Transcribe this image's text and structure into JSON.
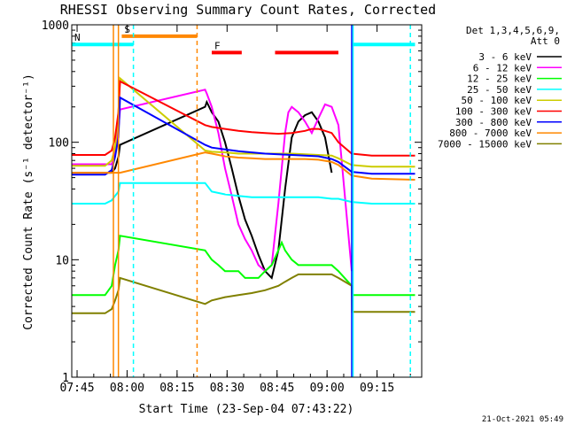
{
  "chart_data": {
    "type": "line",
    "title": "RHESSI Observing Summary Count Rates, Corrected",
    "xlabel": "Start Time (23-Sep-04 07:43:22)",
    "ylabel": "Corrected Count Rate (s⁻¹ detector⁻¹)",
    "x_unit": "minutes since 07:43:22",
    "xlim": [
      0,
      105
    ],
    "ylim": [
      1,
      1000
    ],
    "y_scale": "log",
    "x_ticks": [
      {
        "value": 1.6,
        "label": "07:45"
      },
      {
        "value": 16.6,
        "label": "08:00"
      },
      {
        "value": 31.6,
        "label": "08:15"
      },
      {
        "value": 46.6,
        "label": "08:30"
      },
      {
        "value": 61.6,
        "label": "08:45"
      },
      {
        "value": 76.6,
        "label": "09:00"
      },
      {
        "value": 91.6,
        "label": "09:15"
      }
    ],
    "y_ticks": [
      {
        "value": 1,
        "label": "1"
      },
      {
        "value": 10,
        "label": "10"
      },
      {
        "value": 100,
        "label": "100"
      },
      {
        "value": 1000,
        "label": "1000"
      }
    ],
    "legend_header": [
      "Det 1,3,4,5,6,9,",
      "Att 0"
    ],
    "series": [
      {
        "name": "3 - 6 keV",
        "color": "#000000",
        "x": [
          0,
          12,
          13,
          14,
          14.5,
          40,
          40.5,
          42,
          44,
          46,
          48,
          50,
          52,
          54,
          56,
          58,
          60,
          62,
          64,
          66,
          68,
          70,
          72,
          74,
          76,
          78,
          80
        ],
        "y": [
          55,
          55,
          60,
          75,
          95,
          200,
          220,
          180,
          150,
          100,
          60,
          35,
          22,
          16,
          11,
          8,
          7,
          12,
          40,
          110,
          150,
          170,
          180,
          150,
          110,
          55,
          null
        ]
      },
      {
        "name": "6 - 12 keV",
        "color": "#ff00ff",
        "x": [
          0,
          12,
          13,
          14,
          14.5,
          40,
          40.5,
          42,
          44,
          46,
          48,
          50,
          52,
          54,
          56,
          58,
          60,
          62,
          64,
          65,
          66,
          68,
          70,
          72,
          74,
          76,
          78,
          80,
          84
        ],
        "y": [
          65,
          65,
          80,
          130,
          190,
          280,
          260,
          200,
          120,
          60,
          35,
          20,
          15,
          12,
          9,
          8,
          9,
          30,
          120,
          180,
          200,
          180,
          150,
          120,
          160,
          210,
          200,
          140,
          8
        ]
      },
      {
        "name": "12 - 25 keV",
        "color": "#00ff00",
        "x": [
          0,
          10,
          12,
          13,
          14,
          14.5,
          40,
          42,
          44,
          46,
          48,
          50,
          52,
          54,
          56,
          58,
          60,
          62,
          63,
          64,
          66,
          68,
          70,
          72,
          74,
          76,
          78,
          80,
          84,
          84.1,
          103
        ],
        "y": [
          5,
          5,
          6,
          9,
          12,
          16,
          12,
          10,
          9,
          8,
          8,
          8,
          7,
          7,
          7,
          8,
          9,
          12,
          14,
          12,
          10,
          9,
          9,
          9,
          9,
          9,
          9,
          8,
          6,
          5,
          5
        ]
      },
      {
        "name": "25 - 50 keV",
        "color": "#00ffff",
        "x": [
          0,
          10,
          12,
          13,
          14,
          14.5,
          40,
          42,
          46,
          50,
          54,
          58,
          62,
          66,
          70,
          74,
          78,
          80,
          84,
          90,
          103
        ],
        "y": [
          30,
          30,
          32,
          35,
          38,
          45,
          45,
          38,
          36,
          35,
          34,
          34,
          34,
          34,
          34,
          34,
          33,
          33,
          31,
          30,
          30
        ]
      },
      {
        "name": "50 - 100 keV",
        "color": "#cccc00",
        "x": [
          0,
          10,
          12,
          13,
          14,
          14.5,
          40,
          42,
          46,
          50,
          54,
          58,
          62,
          66,
          70,
          74,
          78,
          80,
          84,
          90,
          103
        ],
        "y": [
          63,
          63,
          70,
          90,
          180,
          350,
          85,
          83,
          82,
          80,
          80,
          80,
          80,
          80,
          79,
          78,
          77,
          73,
          64,
          62,
          62
        ]
      },
      {
        "name": "100 - 300 keV",
        "color": "#ff0000",
        "x": [
          0,
          10,
          12,
          13,
          14,
          14.5,
          40,
          42,
          46,
          50,
          54,
          58,
          62,
          66,
          70,
          72,
          74,
          76,
          78,
          80,
          84,
          90,
          103
        ],
        "y": [
          78,
          78,
          85,
          110,
          180,
          330,
          140,
          135,
          130,
          125,
          122,
          120,
          118,
          120,
          125,
          130,
          130,
          125,
          120,
          100,
          80,
          77,
          77
        ]
      },
      {
        "name": "300 - 800 keV",
        "color": "#0000ff",
        "x": [
          0,
          10,
          12,
          13,
          14,
          14.5,
          40,
          42,
          46,
          50,
          54,
          58,
          62,
          66,
          70,
          74,
          78,
          80,
          84,
          90,
          103
        ],
        "y": [
          53,
          53,
          58,
          75,
          110,
          240,
          95,
          90,
          87,
          84,
          82,
          80,
          79,
          78,
          77,
          76,
          72,
          68,
          56,
          54,
          54
        ]
      },
      {
        "name": "800 - 7000 keV",
        "color": "#ff8800",
        "x": [
          0,
          10,
          14,
          14.5,
          40,
          42,
          46,
          50,
          54,
          58,
          62,
          66,
          70,
          74,
          78,
          80,
          84,
          90,
          103
        ],
        "y": [
          55,
          55,
          55,
          55,
          82,
          80,
          76,
          74,
          73,
          72,
          72,
          72,
          72,
          71,
          68,
          64,
          52,
          49,
          48
        ]
      },
      {
        "name": "7000 - 15000 keV",
        "color": "#808000",
        "x": [
          0,
          10,
          12,
          13,
          14,
          14.5,
          40,
          42,
          46,
          50,
          54,
          58,
          62,
          64,
          66,
          68,
          70,
          72,
          74,
          76,
          78,
          80,
          84,
          84.1,
          103
        ],
        "y": [
          3.5,
          3.5,
          3.8,
          4.5,
          5.5,
          7,
          4.2,
          4.5,
          4.8,
          5,
          5.2,
          5.5,
          6,
          6.5,
          7,
          7.5,
          7.5,
          7.5,
          7.5,
          7.5,
          7.5,
          7,
          6,
          3.6,
          3.6
        ]
      }
    ],
    "flag_bars": [
      {
        "label": "S",
        "color": "#ff8800",
        "x_start": 15,
        "x_end": 37.6,
        "y": 800
      },
      {
        "label": "N",
        "color": "#00ffff",
        "x_start": 0,
        "x_end": 18.5,
        "y": 680
      },
      {
        "label": "",
        "color": "#00ffff",
        "x_start": 84,
        "x_end": 103,
        "y": 680
      },
      {
        "label": "F",
        "color": "#ff0000",
        "x_start": 42,
        "x_end": 51,
        "y": 580
      },
      {
        "label": "",
        "color": "#ff0000",
        "x_start": 61,
        "x_end": 80,
        "y": 580
      }
    ],
    "vertical_markers": [
      {
        "x": 12.5,
        "color": "#ff8800",
        "style": "solid"
      },
      {
        "x": 14,
        "color": "#ff8800",
        "style": "solid"
      },
      {
        "x": 18.5,
        "color": "#00ffff",
        "style": "dashed"
      },
      {
        "x": 37.6,
        "color": "#ff8800",
        "style": "dashed"
      },
      {
        "x": 84,
        "color": "#0000ff",
        "style": "solid"
      },
      {
        "x": 84.4,
        "color": "#00ffff",
        "style": "solid"
      },
      {
        "x": 101.6,
        "color": "#00ffff",
        "style": "dashed"
      }
    ],
    "timestamp": "21-Oct-2021 05:49"
  }
}
